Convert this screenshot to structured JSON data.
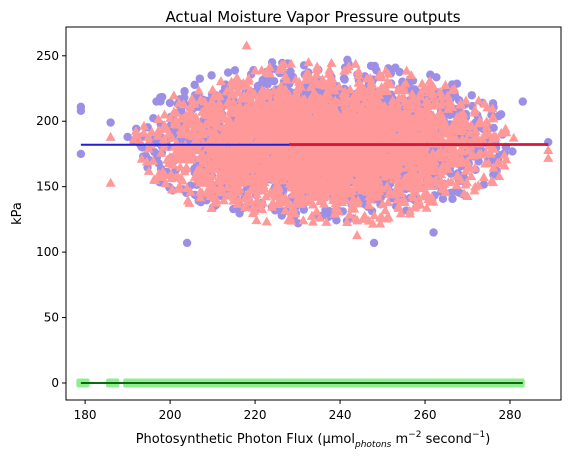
{
  "chart_data": {
    "type": "scatter",
    "title": "Actual Moisture Vapor Pressure outputs",
    "xlabel": {
      "prefix": "Photosynthetic Photon Flux (µmol",
      "subscript": "photons",
      "mid1": " m",
      "sup1": "−2",
      "mid2": " second",
      "sup2": "−1",
      "suffix": ")"
    },
    "ylabel": "kPa",
    "xlim": [
      175.5,
      292
    ],
    "ylim": [
      -13,
      272
    ],
    "xticks": [
      180,
      200,
      220,
      240,
      260,
      280
    ],
    "yticks": [
      0,
      50,
      100,
      150,
      200,
      250
    ],
    "grid": false,
    "legend": "none",
    "colors": {
      "purple_points": "#9c8fe6",
      "pink_points": "#ff9999",
      "green_points": "#90ee90",
      "blue_line": "#1f1fd6",
      "red_line": "#d6173a",
      "dark_green_line": "#0b6b0b"
    },
    "series": [
      {
        "marker": "circle",
        "color": "#9c8fe6",
        "center": [
          236,
          185
        ],
        "spread": [
          19,
          24
        ],
        "x_range": [
          179,
          289
        ],
        "y_range": [
          107,
          253
        ],
        "outliers": [
          [
            179,
            211
          ],
          [
            179,
            208
          ],
          [
            179,
            175
          ],
          [
            186,
            199
          ],
          [
            190,
            188
          ],
          [
            204,
            107
          ],
          [
            283,
            215
          ],
          [
            289,
            184
          ],
          [
            262,
            115
          ],
          [
            248,
            107
          ]
        ]
      },
      {
        "marker": "triangle",
        "color": "#ff9999",
        "center": [
          236,
          182
        ],
        "spread": [
          19,
          24
        ],
        "x_range": [
          186,
          289
        ],
        "y_range": [
          113,
          258
        ],
        "outliers": [
          [
            186,
            188
          ],
          [
            186,
            153
          ],
          [
            218,
            258
          ],
          [
            289,
            178
          ],
          [
            289,
            172
          ],
          [
            244,
            113
          ]
        ]
      },
      {
        "marker": "square",
        "color": "#90ee90",
        "x_range": [
          179,
          283
        ],
        "y_value": 0,
        "x_values_sparse": [
          179,
          180,
          186,
          187,
          190,
          191,
          192,
          193,
          194,
          195
        ]
      }
    ],
    "lines": [
      {
        "color": "#1f1fd6",
        "x": [
          179,
          289
        ],
        "y": [
          182,
          182
        ]
      },
      {
        "color": "#d6173a",
        "x": [
          228,
          289
        ],
        "y": [
          182.5,
          182.5
        ]
      },
      {
        "color": "#0b6b0b",
        "x": [
          179,
          283
        ],
        "y": [
          0,
          0
        ]
      }
    ]
  }
}
